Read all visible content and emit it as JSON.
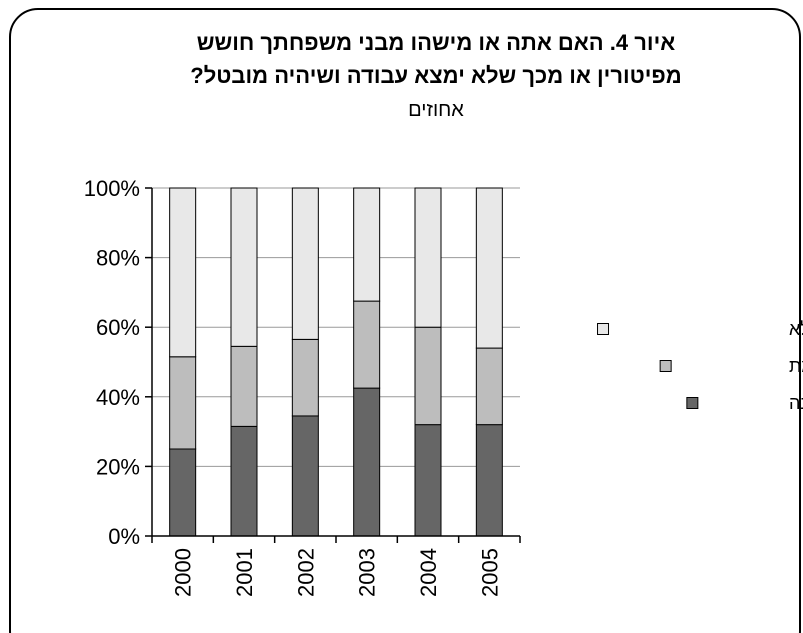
{
  "chart_data": {
    "type": "bar",
    "stacked": true,
    "title_lines": [
      "איור 4. האם אתה או מישהו מבני משפחתך חושש",
      "מפיטורין או מכך שלא ימצא עבודה ושיהיה מובטל?"
    ],
    "subtitle": "אחוזים",
    "categories": [
      "2000",
      "2001",
      "2002",
      "2003",
      "2004",
      "2005"
    ],
    "series": [
      {
        "name": "במידה רבה",
        "color": "#666666",
        "values": [
          25,
          31.5,
          34.5,
          42.5,
          32,
          32
        ]
      },
      {
        "name": "במידה מסוימת",
        "color": "#bdbdbd",
        "values": [
          26.5,
          23,
          22,
          25,
          28,
          22
        ]
      },
      {
        "name": "במידה קטנה או כלל לא",
        "color": "#e8e8e8",
        "values": [
          48.5,
          45.5,
          43.5,
          32.5,
          40,
          46
        ]
      }
    ],
    "ylim": [
      0,
      100
    ],
    "yticks": [
      "0%",
      "20%",
      "40%",
      "60%",
      "80%",
      "100%"
    ],
    "grid": true,
    "legend_position": "right"
  }
}
